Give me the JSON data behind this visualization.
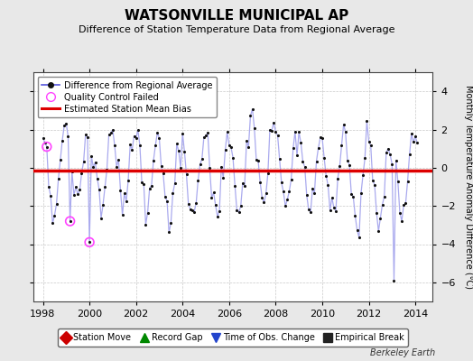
{
  "title": "WATSONVILLE MUNICIPAL AP",
  "subtitle": "Difference of Station Temperature Data from Regional Average",
  "ylabel": "Monthly Temperature Anomaly Difference (°C)",
  "xlabel_years": [
    1998,
    2000,
    2002,
    2004,
    2006,
    2008,
    2010,
    2012,
    2014
  ],
  "ylim": [
    -7,
    5
  ],
  "yticks": [
    -6,
    -4,
    -2,
    0,
    2,
    4
  ],
  "mean_bias": -0.15,
  "line_color": "#5555dd",
  "line_color_light": "#aaaaee",
  "dot_color": "#111111",
  "bias_color": "#dd0000",
  "qc_color": "#ff44ff",
  "background_color": "#e8e8e8",
  "plot_bg": "#ffffff",
  "watermark": "Berkeley Earth",
  "footnote_items": [
    {
      "label": "Station Move",
      "color": "#cc0000",
      "marker": "D"
    },
    {
      "label": "Record Gap",
      "color": "#008800",
      "marker": "^"
    },
    {
      "label": "Time of Obs. Change",
      "color": "#2244cc",
      "marker": "v"
    },
    {
      "label": "Empirical Break",
      "color": "#222222",
      "marker": "s"
    }
  ],
  "seed": 42,
  "n_months": 194,
  "start_year": 1998.0,
  "qc_indices": [
    2,
    14,
    24
  ],
  "qc_extreme_vals": [
    1.1,
    -2.8,
    -3.9
  ],
  "spike_index": 181,
  "spike_val": -5.9
}
